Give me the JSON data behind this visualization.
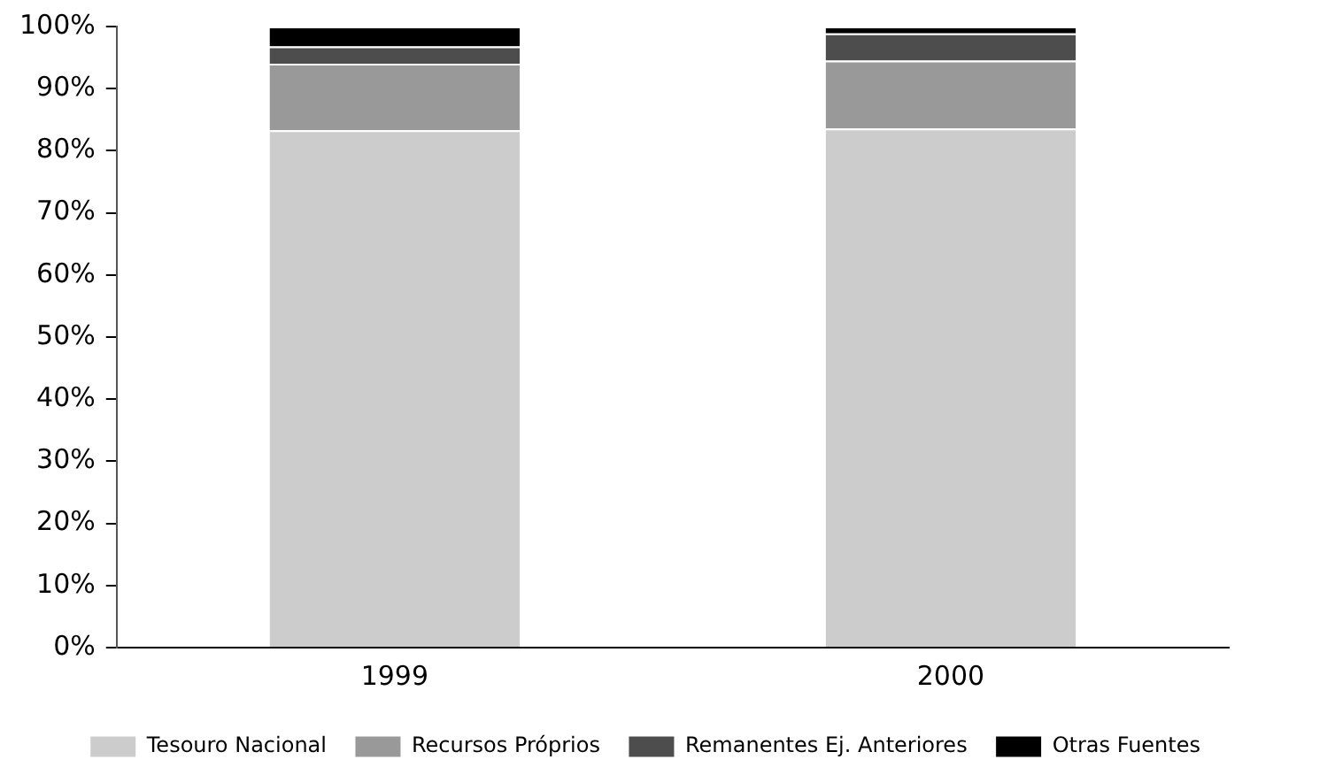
{
  "chart_data": {
    "type": "bar",
    "stacked": true,
    "categories": [
      "1999",
      "2000"
    ],
    "series": [
      {
        "name": "Tesouro Nacional",
        "color": "#cccccc",
        "values": [
          83.3,
          83.6
        ]
      },
      {
        "name": "Recursos Próprios",
        "color": "#999999",
        "values": [
          10.7,
          10.9
        ]
      },
      {
        "name": "Remanentes Ej. Anteriores",
        "color": "#4d4d4d",
        "values": [
          2.8,
          4.4
        ]
      },
      {
        "name": "Otras Fuentes",
        "color": "#000000",
        "values": [
          3.2,
          1.1
        ]
      }
    ],
    "ylim": [
      0,
      100
    ],
    "yticks": [
      {
        "value": 0,
        "label": "0%"
      },
      {
        "value": 10,
        "label": "10%"
      },
      {
        "value": 20,
        "label": "20%"
      },
      {
        "value": 30,
        "label": "30%"
      },
      {
        "value": 40,
        "label": "40%"
      },
      {
        "value": 50,
        "label": "50%"
      },
      {
        "value": 60,
        "label": "60%"
      },
      {
        "value": 70,
        "label": "70%"
      },
      {
        "value": 80,
        "label": "80%"
      },
      {
        "value": 90,
        "label": "90%"
      },
      {
        "value": 100,
        "label": "100%"
      }
    ],
    "grid": false,
    "legend": "bottom"
  }
}
